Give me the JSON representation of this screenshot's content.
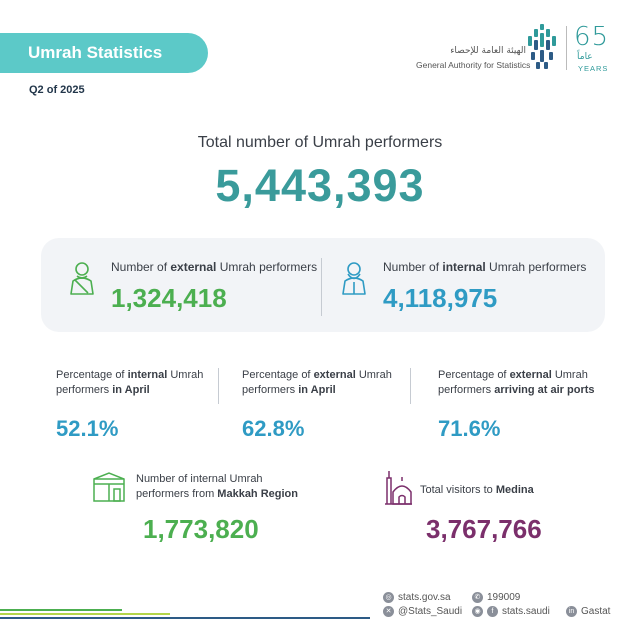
{
  "header": {
    "title": "Umrah Statistics",
    "period": "Q2 of 2025"
  },
  "logo": {
    "name_ar": "الهيئة العامة للإحصاء",
    "name_en": "General Authority for Statistics",
    "anniversary_number": "65",
    "anniversary_ar": "عاماً",
    "anniversary_en": "YEARS",
    "accent_color": "#2f9a9a"
  },
  "total": {
    "label": "Total number of Umrah performers",
    "value": "5,443,393"
  },
  "split": {
    "external": {
      "label_pre": "Number of ",
      "label_bold": "external",
      "label_post": " Umrah performers",
      "value": "1,324,418",
      "icon": "pilgrim-icon",
      "color": "#4caf50"
    },
    "internal": {
      "label_pre": "Number of ",
      "label_bold": "internal",
      "label_post": " Umrah performers",
      "value": "4,118,975",
      "icon": "pilgrim-icon",
      "color": "#2f9bc4"
    }
  },
  "percentages": [
    {
      "line1_pre": "Percentage of ",
      "line1_bold": "internal",
      "line1_post": " Umrah",
      "line2_pre": "performers ",
      "line2_bold": "in April",
      "value": "52.1%"
    },
    {
      "line1_pre": "Percentage of ",
      "line1_bold": "external",
      "line1_post": " Umrah",
      "line2_pre": "performers ",
      "line2_bold": "in April",
      "value": "62.8%"
    },
    {
      "line1_pre": "Percentage of ",
      "line1_bold": "external",
      "line1_post": " Umrah",
      "line2_pre": "performers ",
      "line2_bold": "arriving at air ports",
      "value": "71.6%"
    }
  ],
  "makkah": {
    "line1": "Number of internal Umrah",
    "line2_pre": "performers from ",
    "line2_bold": "Makkah Region",
    "value": "1,773,820",
    "icon": "kaaba-icon",
    "color": "#4caf50"
  },
  "medina": {
    "label_pre": "Total visitors to ",
    "label_bold": "Medina",
    "value": "3,767,766",
    "icon": "mosque-icon",
    "color": "#7b2f6b"
  },
  "footer": {
    "website": "stats.gov.sa",
    "phone": "199009",
    "x_handle": "@Stats_Saudi",
    "instagram": "stats.saudi",
    "linkedin": "Gastat"
  }
}
